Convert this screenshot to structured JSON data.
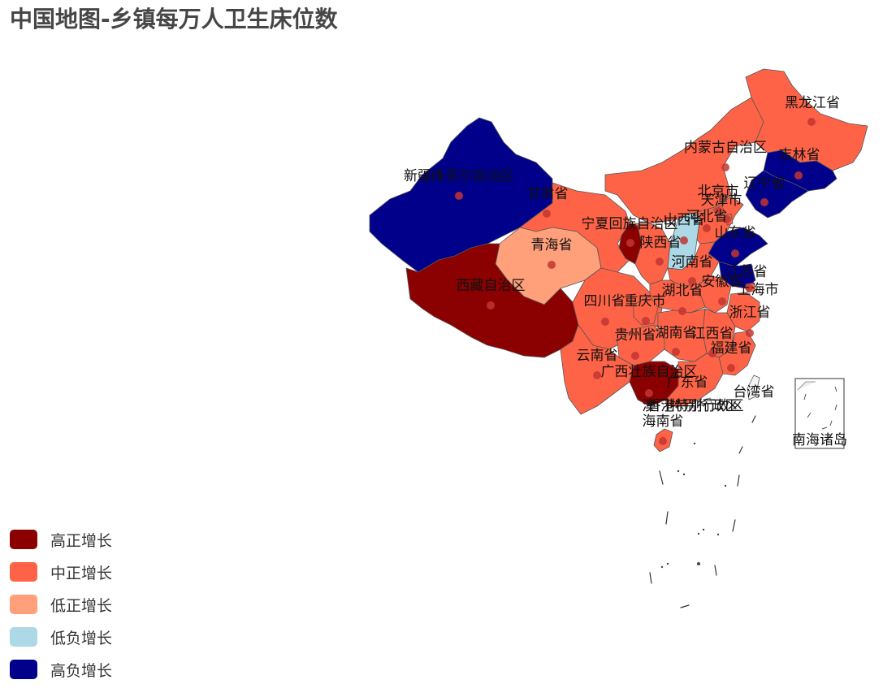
{
  "title": "中国地图-乡镇每万人卫生床位数",
  "legend": [
    {
      "key": "high_pos",
      "label": "高正增长",
      "color": "#8b0000"
    },
    {
      "key": "mid_pos",
      "label": "中正增长",
      "color": "#ff6347"
    },
    {
      "key": "low_pos",
      "label": "低正增长",
      "color": "#ffa07a"
    },
    {
      "key": "low_neg",
      "label": "低负增长",
      "color": "#add8e6"
    },
    {
      "key": "high_neg",
      "label": "高负增长",
      "color": "#00008b"
    }
  ],
  "provinces": [
    {
      "name": "黑龙江省",
      "category": "mid_pos"
    },
    {
      "name": "吉林省",
      "category": "high_neg"
    },
    {
      "name": "辽宁省",
      "category": "high_neg"
    },
    {
      "name": "内蒙古自治区",
      "category": "mid_pos"
    },
    {
      "name": "北京市",
      "category": "mid_pos"
    },
    {
      "name": "天津市",
      "category": "mid_pos"
    },
    {
      "name": "河北省",
      "category": "mid_pos"
    },
    {
      "name": "山西省",
      "category": "low_neg"
    },
    {
      "name": "山东省",
      "category": "high_neg"
    },
    {
      "name": "新疆维吾尔自治区",
      "category": "high_neg"
    },
    {
      "name": "甘肃省",
      "category": "mid_pos"
    },
    {
      "name": "宁夏回族自治区",
      "category": "high_pos"
    },
    {
      "name": "陕西省",
      "category": "mid_pos"
    },
    {
      "name": "青海省",
      "category": "low_pos"
    },
    {
      "name": "西藏自治区",
      "category": "high_pos"
    },
    {
      "name": "河南省",
      "category": "mid_pos"
    },
    {
      "name": "江苏省",
      "category": "high_neg"
    },
    {
      "name": "安徽省",
      "category": "mid_pos"
    },
    {
      "name": "上海市",
      "category": "mid_pos"
    },
    {
      "name": "湖北省",
      "category": "mid_pos"
    },
    {
      "name": "四川省",
      "category": "mid_pos"
    },
    {
      "name": "重庆市",
      "category": "mid_pos"
    },
    {
      "name": "浙江省",
      "category": "mid_pos"
    },
    {
      "name": "贵州省",
      "category": "mid_pos"
    },
    {
      "name": "湖南省",
      "category": "mid_pos"
    },
    {
      "name": "江西省",
      "category": "mid_pos"
    },
    {
      "name": "福建省",
      "category": "mid_pos"
    },
    {
      "name": "云南省",
      "category": "mid_pos"
    },
    {
      "name": "广西壮族自治区",
      "category": "high_pos"
    },
    {
      "name": "广东省",
      "category": "mid_pos"
    },
    {
      "name": "台湾省",
      "category": "none"
    },
    {
      "name": "香港特别行政区",
      "category": "none"
    },
    {
      "name": "澳门特别行政区",
      "category": "none"
    },
    {
      "name": "海南省",
      "category": "mid_pos"
    }
  ],
  "inset_label": "南海诸岛"
}
